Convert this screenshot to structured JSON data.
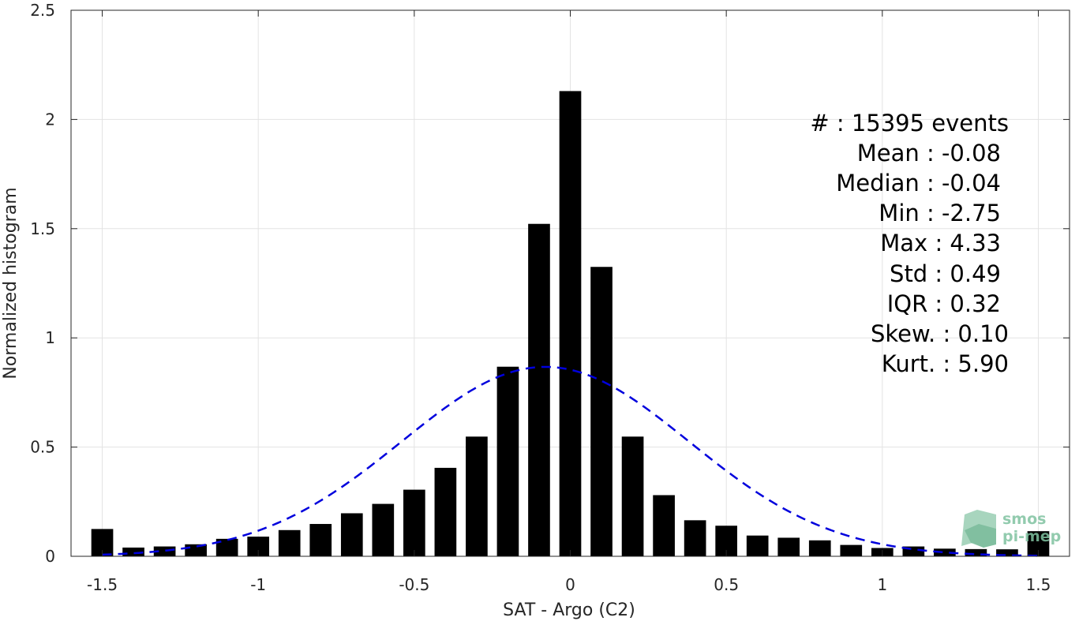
{
  "chart_data": {
    "type": "bar",
    "xlabel": "SAT - Argo (C2)",
    "ylabel": "Normalized histogram",
    "xlim": [
      -1.6,
      1.6
    ],
    "ylim": [
      0,
      2.5
    ],
    "xticks": [
      -1.5,
      -1,
      -0.5,
      0,
      0.5,
      1,
      1.5
    ],
    "xtick_labels": [
      "-1.5",
      "-1",
      "-0.5",
      "0",
      "0.5",
      "1",
      "1.5"
    ],
    "yticks": [
      0,
      0.5,
      1,
      1.5,
      2,
      2.5
    ],
    "ytick_labels": [
      "0",
      "0.5",
      "1",
      "1.5",
      "2",
      "2.5"
    ],
    "grid": true,
    "bar_width": 0.07,
    "bar_color": "#000000",
    "x": [
      -1.5,
      -1.4,
      -1.3,
      -1.2,
      -1.1,
      -1.0,
      -0.9,
      -0.8,
      -0.7,
      -0.6,
      -0.5,
      -0.4,
      -0.3,
      -0.2,
      -0.1,
      0.0,
      0.1,
      0.2,
      0.3,
      0.4,
      0.5,
      0.6,
      0.7,
      0.8,
      0.9,
      1.0,
      1.1,
      1.2,
      1.3,
      1.4,
      1.5
    ],
    "values": [
      0.125,
      0.04,
      0.045,
      0.055,
      0.08,
      0.09,
      0.12,
      0.148,
      0.197,
      0.24,
      0.305,
      0.405,
      0.548,
      0.868,
      1.522,
      2.13,
      1.325,
      0.548,
      0.28,
      0.165,
      0.14,
      0.095,
      0.085,
      0.073,
      0.052,
      0.038,
      0.045,
      0.035,
      0.033,
      0.032,
      0.115
    ],
    "fit": {
      "type": "normal",
      "mean": -0.08,
      "std": 0.46,
      "style": "dashed",
      "color": "#0000dd"
    },
    "annotations": [
      {
        "text": "#  : 15395 events",
        "anchor": "right"
      },
      {
        "text": "Mean : -0.08",
        "anchor": "right"
      },
      {
        "text": "Median : -0.04",
        "anchor": "right"
      },
      {
        "text": "Min : -2.75",
        "anchor": "right"
      },
      {
        "text": "Max : 4.33",
        "anchor": "right"
      },
      {
        "text": "Std : 0.49",
        "anchor": "right"
      },
      {
        "text": "IQR : 0.32",
        "anchor": "right"
      },
      {
        "text": "Skew. : 0.10",
        "anchor": "right"
      },
      {
        "text": "Kurt. : 5.90",
        "anchor": "right"
      }
    ]
  },
  "logo": {
    "line1": "smos",
    "line2": "pi-mep",
    "color": "#7fc2a0"
  }
}
